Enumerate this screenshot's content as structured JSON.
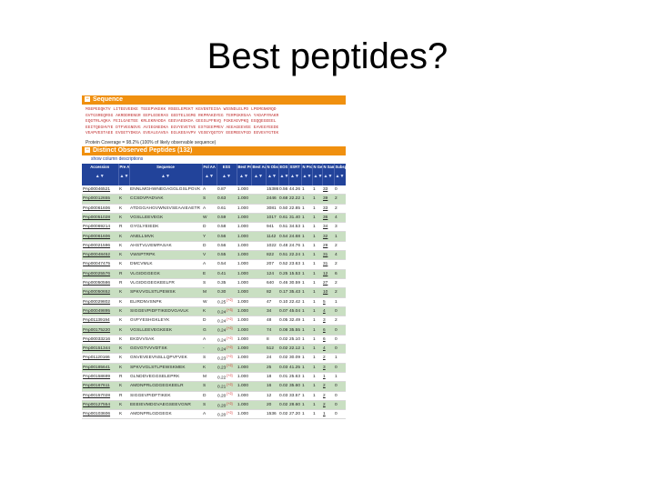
{
  "slide": {
    "title": "Best peptides?"
  },
  "sequence_panel": {
    "header": "Sequence",
    "lines": [
      "MSEPEEQKTV LITEEVEEKE TEEEPVKEKK RSEELEPEKT KGVENTEISA WSSNDLELPD LPEMGNKRQD",
      "GVTGSREQRSG AKRDDRENGR EEPLEDERAS GEDTELSGMG RKPMAKDYEG TERPGKRSAA YADAPYRAKR",
      "EQGTRLAQKA FEILGAETEE KRLEKRADDA GEEVAEEKDA GEGSLPFNVQ FGKEAEVPKQ EGQQEGEEEL",
      "EEITQEGHVYE DTFVEGNDVG AVIEGNEDKA EGVYEVETVE ESTGEEPMEV AEEAGEEVEE EAVEGYEEDE",
      "VEAPVESTAEE EVGETYDKGA EVEALEAVEA EGLKEEAVPV VGSEYQGTDY EEEMEEVFGD EEVEVYGTEK"
    ],
    "coverage_text": "Protein Coverage = 98.2% (100% of likely observable sequence)"
  },
  "peptides_panel": {
    "header": "Distinct Observed Peptides (132)",
    "show_link": "show column descriptions",
    "columns": [
      "Accession",
      "Pre AA",
      "Sequence",
      "Fol AA",
      "ESS",
      "Best Prob",
      "Best Adj Prob",
      "N Obs",
      "EOS",
      "SSRT",
      "N Prot Map",
      "N Gen Loc",
      "N Samples",
      "Subsp of"
    ],
    "arrows": "▲▼",
    "rows": [
      {
        "acc": "PAp00046521",
        "pre": "K",
        "seq": "ENNLMGHWNEGAGGLGSLPGVK",
        "fol": "A",
        "ess": "0.87",
        "essm": "",
        "bp": "1.000",
        "bap": "",
        "nobs": "15386",
        "eos": "0.56",
        "ssrt": "44.26",
        "npm": "1",
        "ngl": "1",
        "ns": "33",
        "sub": "0"
      },
      {
        "acc": "PAp00012655",
        "pre": "K",
        "seq": "CCSDVPADVAK",
        "fol": "S",
        "ess": "0.63",
        "essm": "",
        "bp": "1.000",
        "bap": "",
        "nobs": "2446",
        "eos": "0.68",
        "ssrt": "22.22",
        "npm": "1",
        "ngl": "1",
        "ns": "39",
        "sub": "2"
      },
      {
        "acc": "PAp00061606",
        "pre": "K",
        "seq": "ATDGGAHGVWNSVSEAAIEAETR",
        "fol": "A",
        "ess": "0.61",
        "essm": "",
        "bp": "1.000",
        "bap": "",
        "nobs": "3081",
        "eos": "0.50",
        "ssrt": "22.85",
        "npm": "1",
        "ngl": "1",
        "ns": "33",
        "sub": "2"
      },
      {
        "acc": "PAp00051028",
        "pre": "K",
        "seq": "VGSLLEEVEGK",
        "fol": "W",
        "ess": "0.59",
        "essm": "",
        "bp": "1.000",
        "bap": "",
        "nobs": "1017",
        "eos": "0.61",
        "ssrt": "31.40",
        "npm": "1",
        "ngl": "1",
        "ns": "36",
        "sub": "4"
      },
      {
        "acc": "PAp00069214",
        "pre": "R",
        "seq": "GYGLYEIEDK",
        "fol": "D",
        "ess": "0.58",
        "essm": "",
        "bp": "1.000",
        "bap": "",
        "nobs": "941",
        "eos": "0.51",
        "ssrt": "34.53",
        "npm": "1",
        "ngl": "1",
        "ns": "34",
        "sub": "3"
      },
      {
        "acc": "PAp00061606",
        "pre": "K",
        "seq": "ANELLMVK",
        "fol": "Y",
        "ess": "0.56",
        "essm": "",
        "bp": "1.000",
        "bap": "",
        "nobs": "1142",
        "eos": "0.54",
        "ssrt": "24.68",
        "npm": "1",
        "ngl": "1",
        "ns": "32",
        "sub": "1"
      },
      {
        "acc": "PAp00021596",
        "pre": "K",
        "seq": "AHSTVLVEMPASAK",
        "fol": "D",
        "ess": "0.56",
        "essm": "",
        "bp": "1.000",
        "bap": "",
        "nobs": "1022",
        "eos": "0.48",
        "ssrt": "24.76",
        "npm": "1",
        "ngl": "1",
        "ns": "29",
        "sub": "2"
      },
      {
        "acc": "PAp00048452",
        "pre": "K",
        "seq": "VWSPTRPK",
        "fol": "V",
        "ess": "0.55",
        "essm": "",
        "bp": "1.000",
        "bap": "",
        "nobs": "822",
        "eos": "0.51",
        "ssrt": "22.24",
        "npm": "1",
        "ngl": "1",
        "ns": "31",
        "sub": "4"
      },
      {
        "acc": "PAp00047475",
        "pre": "K",
        "seq": "DMCVMLK",
        "fol": "A",
        "ess": "0.54",
        "essm": "",
        "bp": "1.000",
        "bap": "",
        "nobs": "207",
        "eos": "0.52",
        "ssrt": "23.63",
        "npm": "1",
        "ngl": "1",
        "ns": "31",
        "sub": "2"
      },
      {
        "acc": "PAp00025576",
        "pre": "R",
        "seq": "VLGIDGGEGK",
        "fol": "E",
        "ess": "0.41",
        "essm": "",
        "bp": "1.000",
        "bap": "",
        "nobs": "124",
        "eos": "0.25",
        "ssrt": "15.53",
        "npm": "1",
        "ngl": "1",
        "ns": "12",
        "sub": "6"
      },
      {
        "acc": "PAp00050586",
        "pre": "R",
        "seq": "VLGIDGGEGKEELFR",
        "fol": "S",
        "ess": "0.35",
        "essm": "",
        "bp": "1.000",
        "bap": "",
        "nobs": "640",
        "eos": "0.46",
        "ssrt": "30.59",
        "npm": "1",
        "ngl": "1",
        "ns": "27",
        "sub": "2"
      },
      {
        "acc": "PAp00050652",
        "pre": "K",
        "seq": "SPKVVGLSTLPEWSK",
        "fol": "M",
        "ess": "0.30",
        "essm": "",
        "bp": "1.000",
        "bap": "",
        "nobs": "82",
        "eos": "0.17",
        "ssrt": "35.43",
        "npm": "1",
        "ngl": "1",
        "ns": "10",
        "sub": "2"
      },
      {
        "acc": "PAp00029802",
        "pre": "K",
        "seq": "ELIRDNVSNPK",
        "fol": "W",
        "ess": "0.25",
        "essm": "[+2]",
        "bp": "1.000",
        "bap": "",
        "nobs": "47",
        "eos": "0.10",
        "ssrt": "22.42",
        "npm": "1",
        "ngl": "1",
        "ns": "5",
        "sub": "1"
      },
      {
        "acc": "PAp00049895",
        "pre": "K",
        "seq": "SIGGEVPIDFTIKEDVGAVLK",
        "fol": "K",
        "ess": "0.24",
        "essm": "[+3]",
        "bp": "1.000",
        "bap": "",
        "nobs": "34",
        "eos": "0.07",
        "ssrt": "45.04",
        "npm": "1",
        "ngl": "1",
        "ns": "4",
        "sub": "0"
      },
      {
        "acc": "PAp01139194",
        "pre": "K",
        "seq": "GVFYESHGKLEYK",
        "fol": "D",
        "ess": "0.24",
        "essm": "[+2]",
        "bp": "1.000",
        "bap": "",
        "nobs": "48",
        "eos": "0.05",
        "ssrt": "32.49",
        "npm": "1",
        "ngl": "1",
        "ns": "3",
        "sub": "2"
      },
      {
        "acc": "PAp00175220",
        "pre": "K",
        "seq": "VGSLLEEVEGKEEK",
        "fol": "G",
        "ess": "0.24",
        "essm": "[+2]",
        "bp": "1.000",
        "bap": "",
        "nobs": "74",
        "eos": "0.08",
        "ssrt": "35.55",
        "npm": "1",
        "ngl": "1",
        "ns": "6",
        "sub": "0"
      },
      {
        "acc": "PAp00033216",
        "pre": "K",
        "seq": "EKDVVSAK",
        "fol": "A",
        "ess": "0.24",
        "essm": "[+2]",
        "bp": "1.000",
        "bap": "",
        "nobs": "8",
        "eos": "0.02",
        "ssrt": "25.10",
        "npm": "1",
        "ngl": "1",
        "ns": "6",
        "sub": "0"
      },
      {
        "acc": "PAp00151344",
        "pre": "K",
        "seq": "GGVGTVVVDTSK",
        "fol": "-",
        "ess": "0.24",
        "essm": "[+2]",
        "bp": "1.000",
        "bap": "",
        "nobs": "512",
        "eos": "0.02",
        "ssrt": "22.12",
        "npm": "1",
        "ngl": "1",
        "ns": "4",
        "sub": "0"
      },
      {
        "acc": "PAp01120166",
        "pre": "K",
        "seq": "GNVEVEEVNSLLQPVFVEK",
        "fol": "S",
        "ess": "0.23",
        "essm": "[+2]",
        "bp": "1.000",
        "bap": "",
        "nobs": "24",
        "eos": "0.02",
        "ssrt": "30.09",
        "npm": "1",
        "ngl": "1",
        "ns": "2",
        "sub": "1"
      },
      {
        "acc": "PAp00185641",
        "pre": "K",
        "seq": "SPKVVGLSTLPEWSKMEK",
        "fol": "K",
        "ess": "0.23",
        "essm": "[+2]",
        "bp": "1.000",
        "bap": "",
        "nobs": "25",
        "eos": "0.03",
        "ssrt": "41.25",
        "npm": "1",
        "ngl": "1",
        "ns": "3",
        "sub": "0"
      },
      {
        "acc": "PAp00158699",
        "pre": "R",
        "seq": "GLNDDVEGGSELEPRK",
        "fol": "M",
        "ess": "0.22",
        "essm": "[+2]",
        "bp": "1.000",
        "bap": "",
        "nobs": "18",
        "eos": "0.01",
        "ssrt": "25.63",
        "npm": "1",
        "ngl": "1",
        "ns": "1",
        "sub": "1"
      },
      {
        "acc": "PAp00167611",
        "pre": "K",
        "seq": "AMDNPRLGDGEGKEELR",
        "fol": "S",
        "ess": "0.21",
        "essm": "[+2]",
        "bp": "1.000",
        "bap": "",
        "nobs": "16",
        "eos": "0.02",
        "ssrt": "35.60",
        "npm": "1",
        "ngl": "1",
        "ns": "2",
        "sub": "0"
      },
      {
        "acc": "PAp00157028",
        "pre": "R",
        "seq": "SIGGEVPIDFTIKEK",
        "fol": "D",
        "ess": "0.20",
        "essm": "[+2]",
        "bp": "1.000",
        "bap": "",
        "nobs": "12",
        "eos": "0.03",
        "ssrt": "33.57",
        "npm": "1",
        "ngl": "1",
        "ns": "2",
        "sub": "0"
      },
      {
        "acc": "PAp00127554",
        "pre": "K",
        "seq": "EEEIEVMDGVAEGSEEVGNR",
        "fol": "S",
        "ess": "0.20",
        "essm": "[+2]",
        "bp": "1.000",
        "bap": "",
        "nobs": "20",
        "eos": "0.02",
        "ssrt": "28.60",
        "npm": "1",
        "ngl": "1",
        "ns": "2",
        "sub": "0"
      },
      {
        "acc": "PAp00103606",
        "pre": "K",
        "seq": "AMDNPRLGDGEGK",
        "fol": "A",
        "ess": "0.20",
        "essm": "[+2]",
        "bp": "1.000",
        "bap": "",
        "nobs": "1536",
        "eos": "0.02",
        "ssrt": "27.20",
        "npm": "1",
        "ngl": "1",
        "ns": "1",
        "sub": "0"
      }
    ]
  },
  "colors": {
    "orange": "#f0900f",
    "header_blue": "#22439a",
    "row_green": "#c9dfc2",
    "seq_red": "#c03030",
    "link_blue": "#1a3f9a"
  }
}
